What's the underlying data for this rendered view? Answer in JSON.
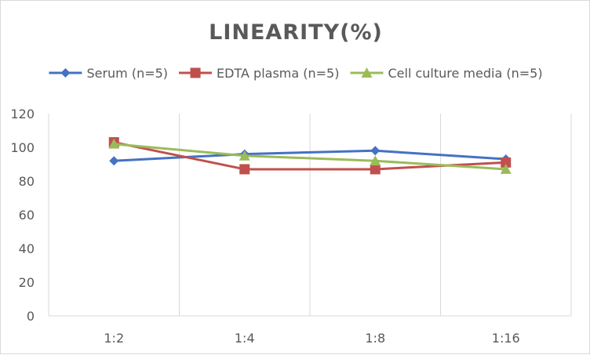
{
  "chart_data": {
    "type": "line",
    "title": "LINEARITY(%)",
    "xlabel": "",
    "ylabel": "",
    "categories": [
      "1:2",
      "1:4",
      "1:8",
      "1:16"
    ],
    "ylim": [
      0,
      120
    ],
    "yticks": [
      0,
      20,
      40,
      60,
      80,
      100,
      120
    ],
    "grid": "vertical",
    "legend_position": "top",
    "series": [
      {
        "name": "Serum (n=5)",
        "values": [
          92,
          96,
          98,
          93
        ],
        "color": "#4472c4",
        "marker": "diamond"
      },
      {
        "name": "EDTA plasma (n=5)",
        "values": [
          103,
          87,
          87,
          91
        ],
        "color": "#c0504d",
        "marker": "square"
      },
      {
        "name": "Cell culture media (n=5)",
        "values": [
          102,
          95,
          92,
          87
        ],
        "color": "#9bbb59",
        "marker": "triangle"
      }
    ]
  }
}
